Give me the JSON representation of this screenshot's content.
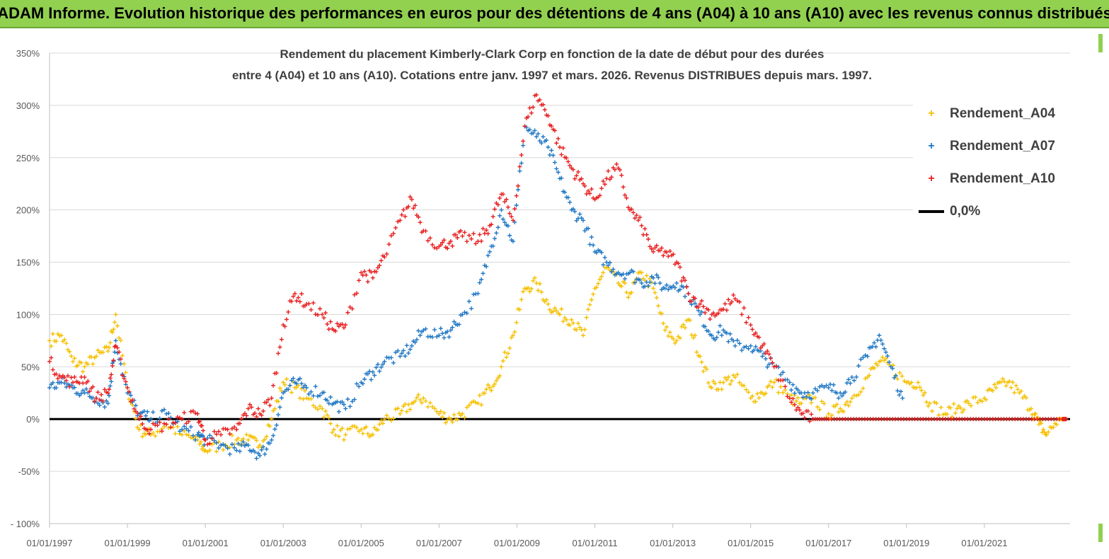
{
  "banner": {
    "title": "ADAM Informe. Evolution historique des performances en euros pour des détentions de 4 ans (A04) à 10 ans (A10) avec les revenus connus distribués"
  },
  "chart_data": {
    "type": "scatter",
    "title_line1": "Rendement du placement Kimberly-Clark Corp en fonction de la date de début pour des durées",
    "title_line2": "entre 4 (A04) et 10 ans (A10). Cotations entre janv. 1997 et mars. 2026. Revenus DISTRIBUES depuis mars. 1997.",
    "xlim": [
      1997.0,
      2023.2
    ],
    "ylim": [
      -100,
      350
    ],
    "y_ticks": [
      -100,
      -50,
      0,
      50,
      100,
      150,
      200,
      250,
      300,
      350
    ],
    "y_tick_labels": [
      "- 100%",
      "-50%",
      "0%",
      "50%",
      "100%",
      "150%",
      "200%",
      "250%",
      "300%",
      "350%"
    ],
    "x_ticks": [
      1997,
      1999,
      2001,
      2003,
      2005,
      2007,
      2009,
      2011,
      2013,
      2015,
      2017,
      2019,
      2021
    ],
    "x_tick_labels": [
      "01/01/1997",
      "01/01/1999",
      "01/01/2001",
      "01/01/2003",
      "01/01/2005",
      "01/01/2007",
      "01/01/2009",
      "01/01/2011",
      "01/01/2013",
      "01/01/2015",
      "01/01/2017",
      "01/01/2019",
      "01/01/2021"
    ],
    "legend_position": "top-right",
    "series": [
      {
        "name": "Rendement_A04",
        "color": "#f5c000",
        "marker": "+",
        "x": [
          1997.0,
          1997.3,
          1997.6,
          1997.9,
          1998.2,
          1998.5,
          1998.7,
          1999.0,
          1999.3,
          1999.6,
          2000.0,
          2000.4,
          2000.8,
          2001.0,
          2001.4,
          2001.8,
          2002.1,
          2002.4,
          2002.7,
          2003.0,
          2003.3,
          2003.6,
          2004.0,
          2004.3,
          2004.6,
          2005.0,
          2005.3,
          2005.6,
          2006.0,
          2006.3,
          2006.6,
          2007.0,
          2007.3,
          2007.6,
          2008.0,
          2008.3,
          2008.6,
          2008.9,
          2009.2,
          2009.5,
          2009.8,
          2010.1,
          2010.4,
          2010.7,
          2011.0,
          2011.3,
          2011.6,
          2011.9,
          2012.2,
          2012.5,
          2012.8,
          2013.1,
          2013.4,
          2013.7,
          2014.0,
          2014.3,
          2014.6,
          2015.0,
          2015.3,
          2015.6,
          2016.0,
          2016.3,
          2016.6,
          2017.0,
          2017.3,
          2017.6,
          2018.0,
          2018.3,
          2018.6,
          2019.0,
          2019.3,
          2019.6,
          2020.0,
          2020.3,
          2020.6,
          2021.0,
          2021.3,
          2021.6,
          2021.9,
          2022.2,
          2022.4,
          2022.6,
          2022.9,
          2023.1
        ],
        "y": [
          75,
          80,
          55,
          50,
          60,
          65,
          100,
          30,
          -10,
          -15,
          -5,
          -15,
          -20,
          -30,
          -25,
          -20,
          -20,
          -25,
          0,
          35,
          30,
          20,
          10,
          -10,
          -15,
          -10,
          -15,
          0,
          5,
          15,
          20,
          5,
          0,
          5,
          15,
          30,
          50,
          80,
          125,
          130,
          110,
          100,
          95,
          80,
          125,
          145,
          130,
          120,
          140,
          125,
          85,
          75,
          95,
          60,
          30,
          35,
          40,
          20,
          25,
          35,
          20,
          15,
          20,
          5,
          10,
          20,
          40,
          55,
          50,
          35,
          35,
          15,
          5,
          10,
          15,
          20,
          30,
          35,
          25,
          10,
          -5,
          -15,
          0,
          0
        ]
      },
      {
        "name": "Rendement_A07",
        "color": "#1f77c4",
        "marker": "+",
        "x": [
          1997.0,
          1997.3,
          1997.6,
          1997.9,
          1998.2,
          1998.5,
          1998.7,
          1999.0,
          1999.3,
          1999.6,
          2000.0,
          2000.4,
          2000.8,
          2001.0,
          2001.4,
          2001.8,
          2002.1,
          2002.4,
          2002.7,
          2003.0,
          2003.3,
          2003.6,
          2004.0,
          2004.3,
          2004.6,
          2005.0,
          2005.3,
          2005.6,
          2006.0,
          2006.3,
          2006.6,
          2007.0,
          2007.3,
          2007.6,
          2008.0,
          2008.3,
          2008.6,
          2008.9,
          2009.2,
          2009.5,
          2009.8,
          2010.1,
          2010.4,
          2010.7,
          2011.0,
          2011.3,
          2011.6,
          2011.9,
          2012.2,
          2012.5,
          2012.8,
          2013.1,
          2013.4,
          2013.7,
          2014.0,
          2014.3,
          2014.6,
          2015.0,
          2015.3,
          2015.6,
          2016.0,
          2016.3,
          2016.6,
          2017.0,
          2017.3,
          2017.6,
          2018.0,
          2018.3,
          2018.6,
          2018.9
        ],
        "y": [
          30,
          35,
          30,
          25,
          20,
          15,
          75,
          25,
          5,
          0,
          5,
          -10,
          -15,
          -20,
          -25,
          -30,
          -25,
          -35,
          -20,
          25,
          35,
          30,
          25,
          15,
          10,
          35,
          45,
          55,
          60,
          70,
          85,
          80,
          85,
          100,
          120,
          160,
          200,
          170,
          280,
          270,
          260,
          230,
          200,
          190,
          160,
          150,
          140,
          140,
          130,
          135,
          125,
          130,
          120,
          100,
          80,
          85,
          70,
          70,
          60,
          50,
          35,
          25,
          25,
          30,
          25,
          40,
          60,
          80,
          50,
          20
        ]
      },
      {
        "name": "Rendement_A10",
        "color": "#e81e1e",
        "marker": "+",
        "x": [
          1997.0,
          1997.3,
          1997.6,
          1997.9,
          1998.2,
          1998.5,
          1998.7,
          1999.0,
          1999.3,
          1999.6,
          2000.0,
          2000.4,
          2000.8,
          2001.0,
          2001.4,
          2001.8,
          2002.1,
          2002.4,
          2002.7,
          2003.0,
          2003.3,
          2003.6,
          2004.0,
          2004.3,
          2004.6,
          2005.0,
          2005.3,
          2005.6,
          2006.0,
          2006.3,
          2006.6,
          2007.0,
          2007.3,
          2007.6,
          2008.0,
          2008.3,
          2008.6,
          2008.9,
          2009.2,
          2009.5,
          2009.8,
          2010.1,
          2010.4,
          2010.7,
          2011.0,
          2011.3,
          2011.6,
          2011.9,
          2012.2,
          2012.5,
          2012.8,
          2013.1,
          2013.4,
          2013.7,
          2014.0,
          2014.3,
          2014.6,
          2015.0,
          2015.3,
          2015.6,
          2016.0,
          2016.3,
          2016.6,
          2017.0,
          2017.5,
          2018.0,
          2018.5,
          2019.0,
          2019.5,
          2020.0,
          2020.5,
          2021.0,
          2021.5,
          2022.0,
          2022.5,
          2023.0,
          2023.1
        ],
        "y": [
          55,
          40,
          35,
          40,
          20,
          25,
          70,
          30,
          0,
          -10,
          -5,
          0,
          5,
          -20,
          -15,
          -10,
          10,
          5,
          20,
          90,
          120,
          110,
          100,
          85,
          90,
          140,
          135,
          155,
          190,
          210,
          180,
          165,
          170,
          175,
          170,
          185,
          215,
          190,
          280,
          310,
          290,
          260,
          240,
          225,
          210,
          230,
          240,
          200,
          185,
          160,
          160,
          150,
          120,
          110,
          100,
          105,
          115,
          90,
          70,
          50,
          20,
          5,
          0,
          0,
          0,
          0,
          0,
          0,
          0,
          0,
          0,
          0,
          0,
          0,
          0,
          0,
          0
        ]
      }
    ],
    "reference_line": {
      "name": "0,0%",
      "y": 0,
      "color": "#000000"
    }
  }
}
